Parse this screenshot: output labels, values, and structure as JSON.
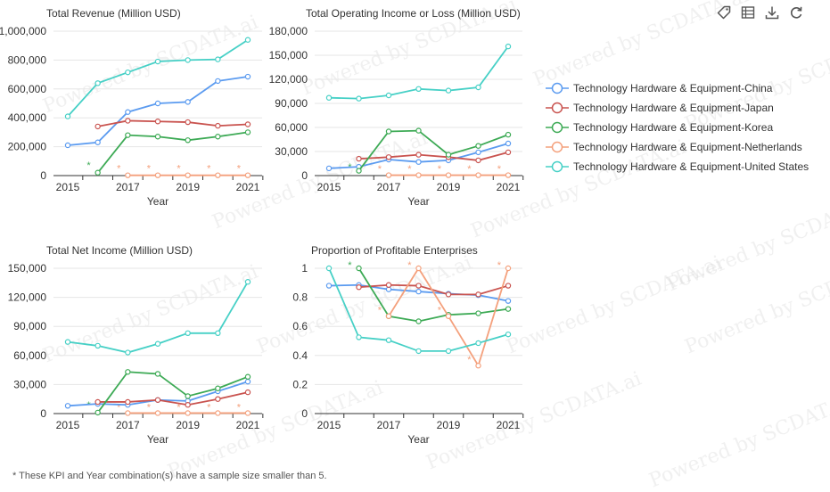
{
  "watermark_text": "Powered by SCDATA.ai",
  "toolbar": {
    "icons": [
      "tag-icon",
      "data-view-icon",
      "download-icon",
      "refresh-icon"
    ]
  },
  "legend": {
    "items": [
      {
        "label": "Technology Hardware & Equipment-China",
        "color": "#5b9bf0"
      },
      {
        "label": "Technology Hardware & Equipment-Japan",
        "color": "#c9534f"
      },
      {
        "label": "Technology Hardware & Equipment-Korea",
        "color": "#3daa55"
      },
      {
        "label": "Technology Hardware & Equipment-Netherlands",
        "color": "#f4a07c"
      },
      {
        "label": "Technology Hardware & Equipment-United States",
        "color": "#46d0c6"
      }
    ]
  },
  "footnote": "* These KPI and Year combination(s) have a sample size smaller than 5.",
  "chart_data": [
    {
      "type": "line",
      "title": "Total Revenue (Million USD)",
      "xlabel": "Year",
      "x": [
        2015,
        2016,
        2017,
        2018,
        2019,
        2020,
        2021
      ],
      "x_tick_labels": [
        "2015",
        "2017",
        "2019",
        "2021"
      ],
      "ylim": [
        0,
        1000000
      ],
      "y_ticks": [
        0,
        200000,
        400000,
        600000,
        800000,
        1000000
      ],
      "y_tick_labels": [
        "0",
        "200,000",
        "400,000",
        "600,000",
        "800,000",
        "1,000,000"
      ],
      "series": [
        {
          "name": "Technology Hardware & Equipment-China",
          "values": [
            210000,
            230000,
            440000,
            500000,
            510000,
            655000,
            685000
          ]
        },
        {
          "name": "Technology Hardware & Equipment-Japan",
          "values": [
            null,
            340000,
            380000,
            375000,
            370000,
            345000,
            355000
          ]
        },
        {
          "name": "Technology Hardware & Equipment-Korea",
          "values": [
            null,
            20000,
            280000,
            270000,
            245000,
            270000,
            300000
          ]
        },
        {
          "name": "Technology Hardware & Equipment-Netherlands",
          "values": [
            null,
            null,
            2000,
            2000,
            2000,
            2000,
            2000
          ]
        },
        {
          "name": "Technology Hardware & Equipment-United States",
          "values": [
            410000,
            640000,
            715000,
            790000,
            800000,
            805000,
            940000
          ]
        }
      ],
      "annotations": [
        {
          "x": 2015.7,
          "y": 80000,
          "text": "*",
          "color": "#3daa55"
        },
        {
          "x": 2016.7,
          "y": 60000,
          "text": "*",
          "color": "#f4a07c"
        },
        {
          "x": 2017.7,
          "y": 60000,
          "text": "*",
          "color": "#f4a07c"
        },
        {
          "x": 2018.7,
          "y": 60000,
          "text": "*",
          "color": "#f4a07c"
        },
        {
          "x": 2019.7,
          "y": 60000,
          "text": "*",
          "color": "#f4a07c"
        },
        {
          "x": 2020.7,
          "y": 60000,
          "text": "*",
          "color": "#f4a07c"
        }
      ]
    },
    {
      "type": "line",
      "title": "Total Operating Income or Loss (Million USD)",
      "xlabel": "Year",
      "x": [
        2015,
        2016,
        2017,
        2018,
        2019,
        2020,
        2021
      ],
      "x_tick_labels": [
        "2015",
        "2017",
        "2019",
        "2021"
      ],
      "ylim": [
        0,
        180000
      ],
      "y_ticks": [
        0,
        30000,
        60000,
        90000,
        120000,
        150000,
        180000
      ],
      "y_tick_labels": [
        "0",
        "30,000",
        "60,000",
        "90,000",
        "120,000",
        "150,000",
        "180,000"
      ],
      "series": [
        {
          "name": "Technology Hardware & Equipment-China",
          "values": [
            9000,
            11000,
            20000,
            17000,
            19000,
            29000,
            40000
          ]
        },
        {
          "name": "Technology Hardware & Equipment-Japan",
          "values": [
            null,
            21000,
            23000,
            26000,
            23000,
            19000,
            29000
          ]
        },
        {
          "name": "Technology Hardware & Equipment-Korea",
          "values": [
            null,
            6000,
            55000,
            56000,
            26000,
            37000,
            51000
          ]
        },
        {
          "name": "Technology Hardware & Equipment-Netherlands",
          "values": [
            null,
            null,
            500,
            500,
            500,
            500,
            500
          ]
        },
        {
          "name": "Technology Hardware & Equipment-United States",
          "values": [
            97000,
            96000,
            100000,
            108000,
            106000,
            110000,
            161000
          ]
        }
      ],
      "annotations": [
        {
          "x": 2015.7,
          "y": 12000,
          "text": "*",
          "color": "#3daa55"
        },
        {
          "x": 2016.7,
          "y": 10000,
          "text": "*",
          "color": "#f4a07c"
        },
        {
          "x": 2017.7,
          "y": 10000,
          "text": "*",
          "color": "#f4a07c"
        },
        {
          "x": 2018.7,
          "y": 10000,
          "text": "*",
          "color": "#f4a07c"
        },
        {
          "x": 2019.7,
          "y": 10000,
          "text": "*",
          "color": "#f4a07c"
        },
        {
          "x": 2020.7,
          "y": 10000,
          "text": "*",
          "color": "#f4a07c"
        }
      ]
    },
    {
      "type": "line",
      "title": "Total Net Income (Million USD)",
      "xlabel": "Year",
      "x": [
        2015,
        2016,
        2017,
        2018,
        2019,
        2020,
        2021
      ],
      "x_tick_labels": [
        "2015",
        "2017",
        "2019",
        "2021"
      ],
      "ylim": [
        0,
        150000
      ],
      "y_ticks": [
        0,
        30000,
        60000,
        90000,
        120000,
        150000
      ],
      "y_tick_labels": [
        "0",
        "30,000",
        "60,000",
        "90,000",
        "120,000",
        "150,000"
      ],
      "series": [
        {
          "name": "Technology Hardware & Equipment-China",
          "values": [
            8000,
            10000,
            9000,
            14000,
            13000,
            23000,
            33000
          ]
        },
        {
          "name": "Technology Hardware & Equipment-Japan",
          "values": [
            null,
            12000,
            12000,
            14000,
            9000,
            15000,
            22000
          ]
        },
        {
          "name": "Technology Hardware & Equipment-Korea",
          "values": [
            null,
            1000,
            43000,
            41000,
            18000,
            26000,
            38000
          ]
        },
        {
          "name": "Technology Hardware & Equipment-Netherlands",
          "values": [
            null,
            null,
            500,
            500,
            500,
            500,
            500
          ]
        },
        {
          "name": "Technology Hardware & Equipment-United States",
          "values": [
            74000,
            70000,
            63000,
            72000,
            83000,
            83000,
            136000
          ]
        }
      ],
      "annotations": [
        {
          "x": 2015.7,
          "y": 10000,
          "text": "*",
          "color": "#3daa55"
        },
        {
          "x": 2016.7,
          "y": 8000,
          "text": "*",
          "color": "#f4a07c"
        },
        {
          "x": 2017.7,
          "y": 8000,
          "text": "*",
          "color": "#f4a07c"
        },
        {
          "x": 2018.7,
          "y": 8000,
          "text": "*",
          "color": "#f4a07c"
        },
        {
          "x": 2019.7,
          "y": 8000,
          "text": "*",
          "color": "#f4a07c"
        },
        {
          "x": 2020.7,
          "y": 8000,
          "text": "*",
          "color": "#f4a07c"
        }
      ]
    },
    {
      "type": "line",
      "title": "Proportion of Profitable Enterprises",
      "xlabel": "Year",
      "x": [
        2015,
        2016,
        2017,
        2018,
        2019,
        2020,
        2021
      ],
      "x_tick_labels": [
        "2015",
        "2017",
        "2019",
        "2021"
      ],
      "ylim": [
        0,
        1
      ],
      "y_ticks": [
        0,
        0.2,
        0.4,
        0.6,
        0.8,
        1
      ],
      "y_tick_labels": [
        "0",
        "0.2",
        "0.4",
        "0.6",
        "0.8",
        "1"
      ],
      "series": [
        {
          "name": "Technology Hardware & Equipment-China",
          "values": [
            0.88,
            0.885,
            0.855,
            0.84,
            0.825,
            0.815,
            0.775
          ]
        },
        {
          "name": "Technology Hardware & Equipment-Japan",
          "values": [
            null,
            0.87,
            0.885,
            0.88,
            0.82,
            0.82,
            0.88
          ]
        },
        {
          "name": "Technology Hardware & Equipment-Korea",
          "values": [
            null,
            1,
            0.67,
            0.635,
            0.68,
            0.69,
            0.72
          ]
        },
        {
          "name": "Technology Hardware & Equipment-Netherlands",
          "values": [
            null,
            null,
            0.67,
            1,
            0.67,
            0.33,
            1
          ]
        },
        {
          "name": "Technology Hardware & Equipment-United States",
          "values": [
            1,
            0.525,
            0.505,
            0.43,
            0.43,
            0.485,
            0.545
          ]
        }
      ],
      "annotations": [
        {
          "x": 2015.7,
          "y": 1.03,
          "text": "*",
          "color": "#3daa55"
        },
        {
          "x": 2016.7,
          "y": 0.72,
          "text": "*",
          "color": "#f4a07c"
        },
        {
          "x": 2017.7,
          "y": 1.03,
          "text": "*",
          "color": "#f4a07c"
        },
        {
          "x": 2018.7,
          "y": 0.72,
          "text": "*",
          "color": "#f4a07c"
        },
        {
          "x": 2019.7,
          "y": 0.38,
          "text": "*",
          "color": "#f4a07c"
        },
        {
          "x": 2020.7,
          "y": 1.03,
          "text": "*",
          "color": "#f4a07c"
        }
      ]
    }
  ]
}
